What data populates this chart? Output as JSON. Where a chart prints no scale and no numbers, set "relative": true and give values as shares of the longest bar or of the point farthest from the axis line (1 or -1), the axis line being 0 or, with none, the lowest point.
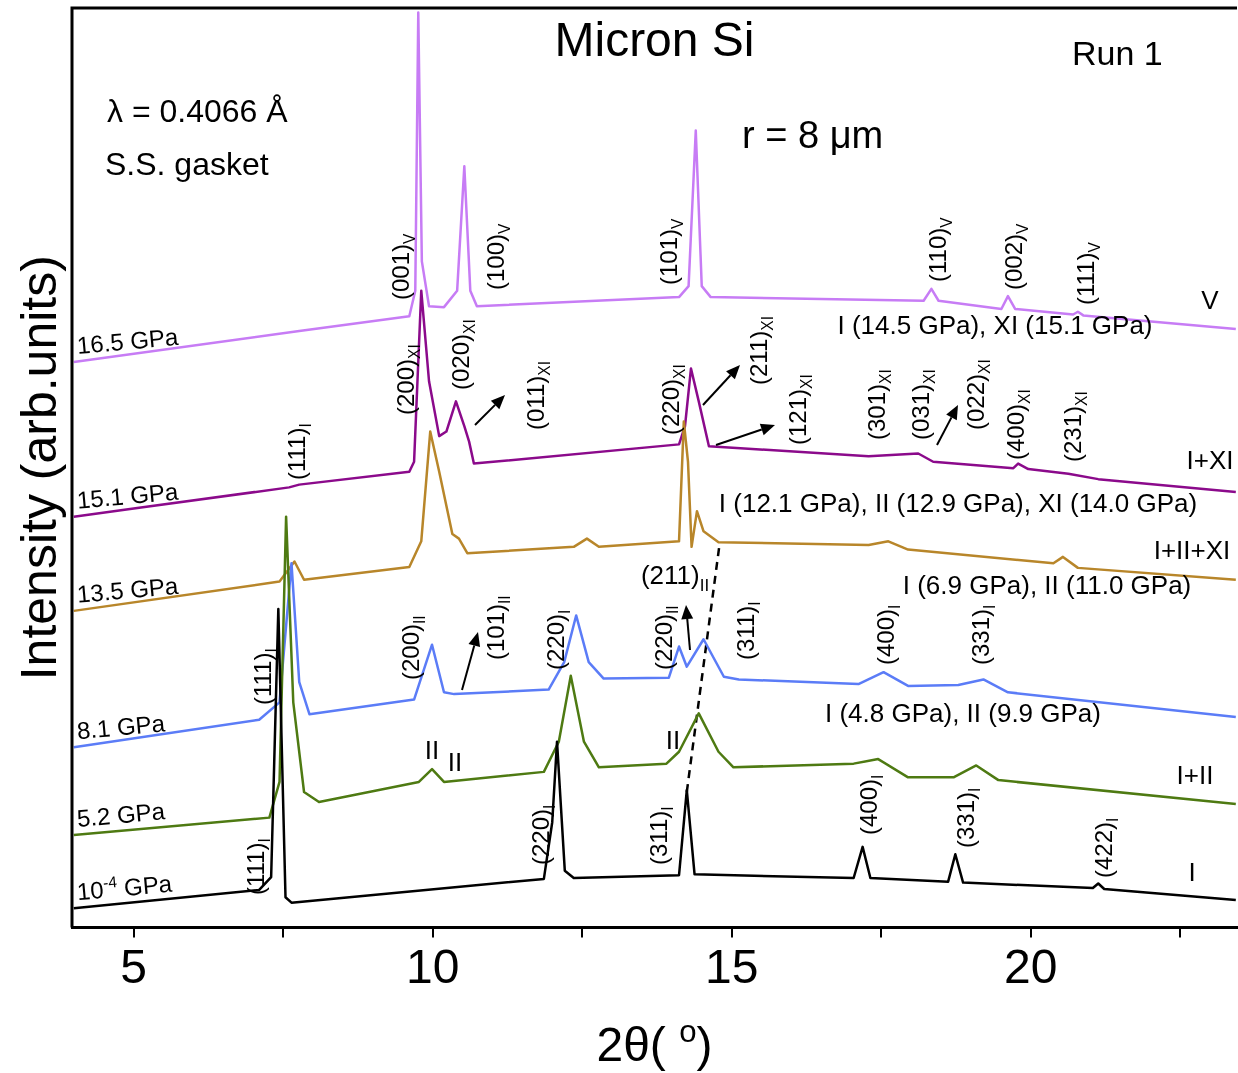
{
  "chart_data": {
    "type": "line",
    "title": "Micron Si",
    "xlabel": "2θ( $^{o}$)",
    "ylabel": "Intensity (arb.units)",
    "relative": true,
    "xlim": [
      3.97,
      23.45
    ],
    "xticks": [
      5,
      {
        "value": 7.5,
        "label": null
      },
      10,
      {
        "value": 12.5,
        "label": null
      },
      15,
      {
        "value": 17.5,
        "label": null
      },
      20,
      {
        "value": 22.5,
        "label": null
      }
    ],
    "legend": false,
    "grid": false,
    "marker": "none",
    "line_style": "solid",
    "series": [
      {
        "name": "10$^{-4}$ GPa",
        "color": "#000000",
        "x": [
          4.0,
          7.1,
          7.3,
          7.42,
          7.54,
          7.64,
          11.86,
          12.0,
          12.08,
          12.21,
          12.36,
          14.12,
          14.25,
          14.38,
          17.04,
          17.19,
          17.32,
          18.62,
          18.74,
          18.87,
          21.04,
          21.13,
          21.23,
          23.43
        ],
        "values": [
          0.021,
          0.041,
          0.055,
          0.348,
          0.033,
          0.027,
          0.053,
          0.115,
          0.203,
          0.062,
          0.054,
          0.057,
          0.15,
          0.058,
          0.054,
          0.088,
          0.054,
          0.05,
          0.08,
          0.049,
          0.043,
          0.048,
          0.042,
          0.03
        ]
      },
      {
        "name": "5.2 GPa",
        "color": "#4e7a12",
        "x": [
          4.0,
          7.27,
          7.44,
          7.55,
          7.67,
          7.85,
          8.1,
          9.77,
          9.99,
          10.19,
          11.86,
          12.11,
          12.31,
          12.53,
          12.78,
          13.91,
          14.12,
          14.45,
          14.78,
          15.03,
          17.04,
          17.45,
          17.95,
          18.71,
          19.09,
          19.46,
          23.43
        ],
        "values": [
          0.101,
          0.12,
          0.159,
          0.449,
          0.246,
          0.148,
          0.137,
          0.159,
          0.173,
          0.159,
          0.17,
          0.203,
          0.275,
          0.203,
          0.175,
          0.179,
          0.192,
          0.234,
          0.192,
          0.175,
          0.179,
          0.184,
          0.164,
          0.164,
          0.177,
          0.161,
          0.135
        ]
      },
      {
        "name": "8.1 GPa",
        "color": "#5b7cf7",
        "x": [
          4.0,
          7.1,
          7.44,
          7.64,
          7.77,
          7.94,
          9.69,
          9.99,
          10.19,
          10.36,
          11.94,
          12.2,
          12.4,
          12.61,
          12.86,
          13.95,
          14.12,
          14.25,
          14.53,
          14.87,
          15.12,
          17.12,
          17.54,
          17.95,
          18.79,
          19.21,
          19.62,
          23.43
        ],
        "values": [
          0.197,
          0.227,
          0.246,
          0.398,
          0.268,
          0.233,
          0.249,
          0.309,
          0.257,
          0.255,
          0.26,
          0.29,
          0.341,
          0.29,
          0.272,
          0.273,
          0.307,
          0.285,
          0.315,
          0.274,
          0.271,
          0.266,
          0.279,
          0.264,
          0.265,
          0.271,
          0.257,
          0.23
        ]
      },
      {
        "name": "13.5 GPa",
        "color": "#b8862a",
        "x": [
          4.0,
          7.44,
          7.69,
          7.85,
          9.61,
          9.81,
          9.96,
          10.11,
          10.33,
          10.44,
          10.58,
          12.36,
          12.58,
          12.78,
          14.12,
          14.2,
          14.27,
          14.33,
          14.42,
          14.53,
          14.78,
          17.29,
          17.62,
          17.95,
          20.38,
          20.54,
          20.79,
          23.43
        ],
        "values": [
          0.346,
          0.378,
          0.4,
          0.38,
          0.394,
          0.422,
          0.542,
          0.498,
          0.43,
          0.425,
          0.409,
          0.416,
          0.425,
          0.416,
          0.422,
          0.553,
          0.509,
          0.416,
          0.455,
          0.433,
          0.421,
          0.418,
          0.422,
          0.413,
          0.398,
          0.405,
          0.393,
          0.38
        ]
      },
      {
        "name": "15.1 GPa",
        "color": "#8b0a8b",
        "x": [
          4.0,
          7.6,
          7.77,
          9.61,
          9.69,
          9.81,
          9.94,
          10.11,
          10.23,
          10.39,
          10.53,
          10.61,
          10.69,
          14.12,
          14.22,
          14.32,
          14.45,
          14.62,
          17.29,
          18.12,
          18.37,
          19.71,
          19.79,
          19.96,
          20.63,
          21.13,
          23.43
        ],
        "values": [
          0.449,
          0.481,
          0.484,
          0.498,
          0.509,
          0.696,
          0.597,
          0.537,
          0.542,
          0.575,
          0.548,
          0.531,
          0.507,
          0.528,
          0.548,
          0.611,
          0.575,
          0.526,
          0.515,
          0.518,
          0.509,
          0.502,
          0.507,
          0.501,
          0.496,
          0.49,
          0.476
        ]
      },
      {
        "name": "16.5 GPa",
        "color": "#c77cf5",
        "x": [
          4.0,
          7.77,
          9.61,
          9.71,
          9.76,
          9.82,
          9.94,
          10.19,
          10.41,
          10.53,
          10.63,
          10.74,
          14.12,
          14.28,
          14.4,
          14.5,
          14.65,
          18.21,
          18.34,
          18.46,
          19.51,
          19.62,
          19.74,
          20.71,
          20.79,
          20.88,
          23.43
        ],
        "values": [
          0.618,
          0.652,
          0.668,
          0.696,
          1.0,
          0.728,
          0.679,
          0.678,
          0.696,
          0.832,
          0.696,
          0.679,
          0.689,
          0.701,
          0.871,
          0.701,
          0.689,
          0.685,
          0.698,
          0.685,
          0.676,
          0.69,
          0.676,
          0.67,
          0.673,
          0.669,
          0.654
        ]
      },
      {
        "color": "#000000",
        "line_style": "dashed",
        "x": [
          14.25,
          14.8
        ],
        "values": [
          0.148,
          0.42
        ]
      }
    ],
    "annotations": [
      "(001)$_{V}$",
      "(100)$_{V}$",
      "(101)$_{V}$",
      "(110)$_{V}$",
      "(002)$_{V}$",
      "(111)$_{V}$",
      "(111)$_{I}$",
      "(200)$_{XI}$",
      "(020)$_{XI}$",
      "(011)$_{XI}$",
      "(220)$_{XI}$",
      "(211)$_{XI}$",
      "(121)$_{XI}$",
      "(301)$_{XI}$",
      "(031)$_{XI}$",
      "(022)$_{XI}$",
      "(400)$_{XI}$",
      "(231)$_{XI}$",
      "(111)$_{I}$",
      "(200)$_{II}$",
      "(101)$_{II}$",
      "(220)$_{I}$",
      "(220)$_{II}$",
      "(311)$_{I}$",
      "(400)$_{I}$",
      "(331)$_{I}$",
      "(111)$_{I}$",
      "(220)$_{I}$",
      "(311)$_{I}$",
      "(400)$_{I}$",
      "(331)$_{I}$",
      "(422)$_{I}$",
      "(211)$_{II}$",
      "II",
      "II",
      "II",
      "V",
      "I+XI",
      "I+II+XI",
      "I+II",
      "I",
      "I (14.5 GPa), XI (15.1 GPa)",
      "I (12.1 GPa), II (12.9 GPa), XI (14.0 GPa)",
      "I (6.9 GPa), II (11.0 GPa)",
      "I (4.8 GPa), II (9.9 GPa)",
      "λ = 0.4066 Å",
      "S.S. gasket",
      "r = 8 μm",
      "Run 1"
    ]
  }
}
